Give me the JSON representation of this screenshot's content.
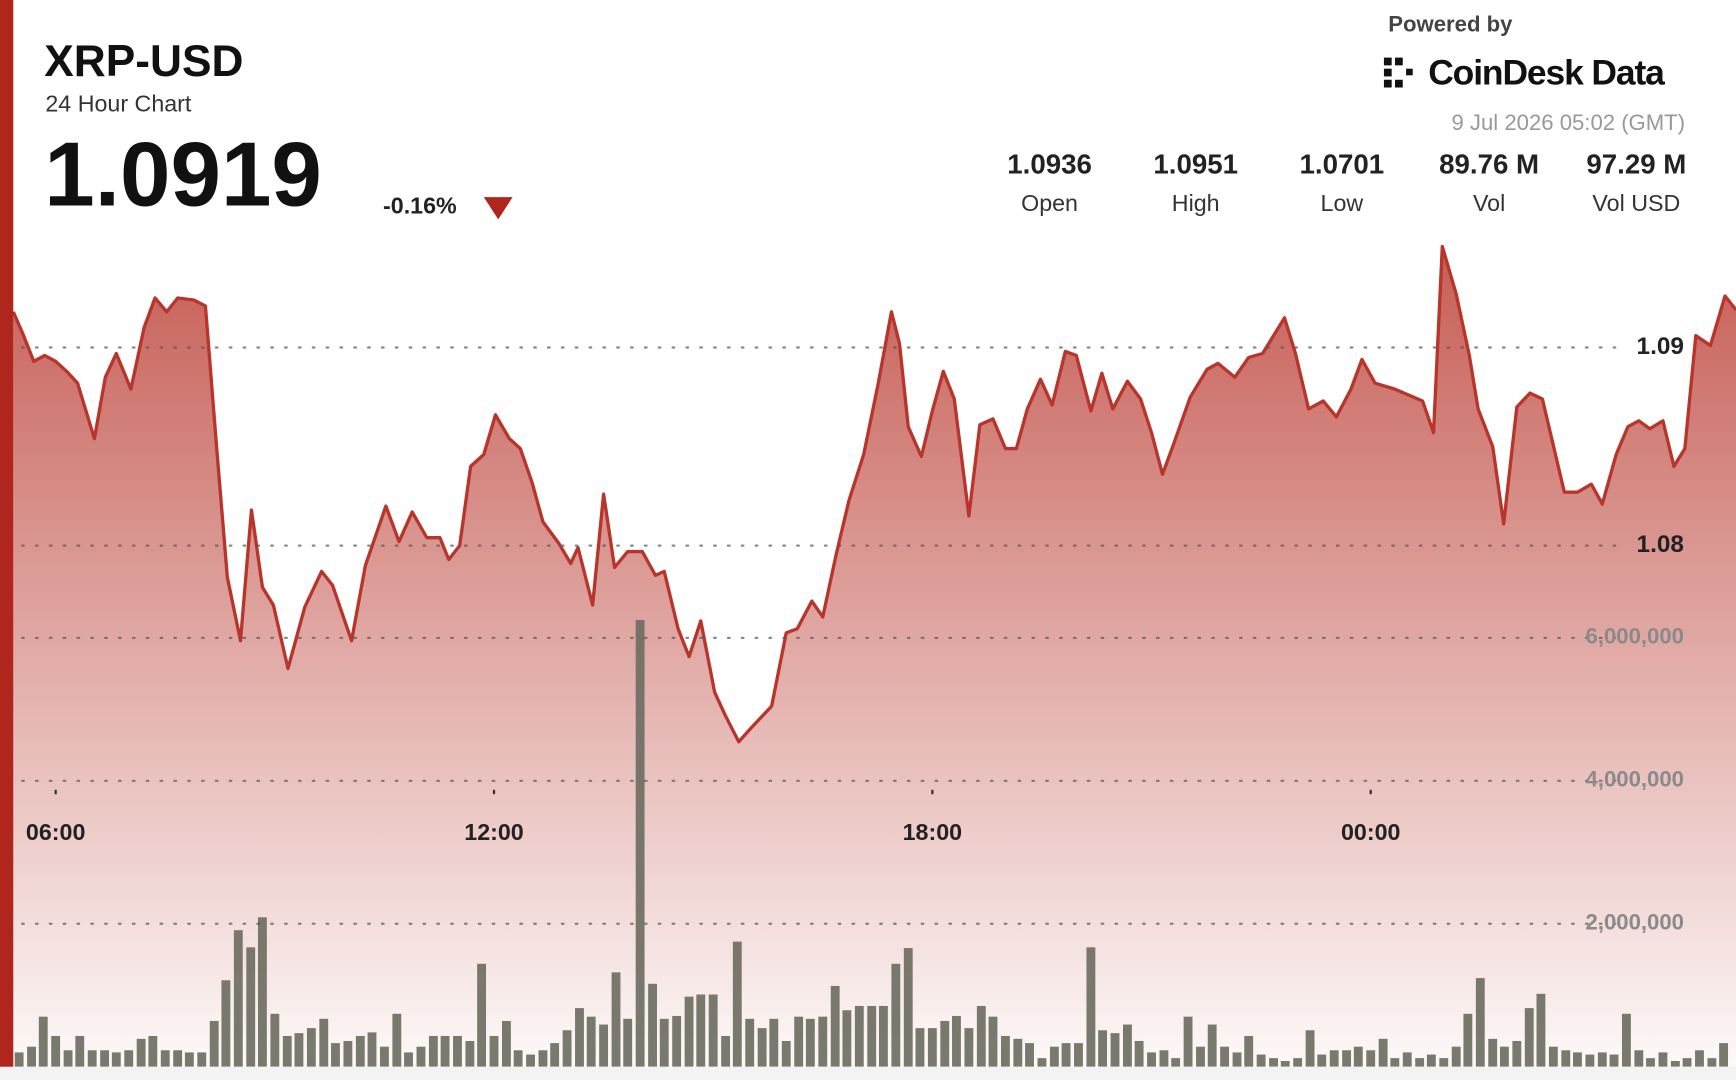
{
  "header": {
    "symbol": "XRP-USD",
    "subtitle": "24 Hour Chart",
    "price": "1.0919",
    "change": "-0.16%",
    "powered_by": "Powered by",
    "brand": "CoinDesk Data",
    "timestamp": "9 Jul 2026 05:02 (GMT)",
    "stats": [
      {
        "value": "1.0936",
        "label": "Open"
      },
      {
        "value": "1.0951",
        "label": "High"
      },
      {
        "value": "1.0701",
        "label": "Low"
      },
      {
        "value": "89.76 M",
        "label": "Vol"
      },
      {
        "value": "97.29 M",
        "label": "Vol USD"
      }
    ]
  },
  "chart_data": [
    {
      "type": "area",
      "color": "#b8352b",
      "xlim": [
        5.42,
        29
      ],
      "xticks": [
        {
          "value": 6,
          "label": "06:00"
        },
        {
          "value": 12,
          "label": "12:00"
        },
        {
          "value": 18,
          "label": "18:00"
        },
        {
          "value": 24,
          "label": "00:00"
        }
      ],
      "ylim": [
        1.0537,
        1.0958
      ],
      "yticks": [
        1.08,
        1.09
      ],
      "grid": true,
      "x": [
        5.42,
        5.55,
        5.7,
        5.85,
        6,
        6.15,
        6.3,
        6.53,
        6.68,
        6.83,
        7.03,
        7.21,
        7.36,
        7.52,
        7.67,
        7.89,
        8.05,
        8.2,
        8.35,
        8.53,
        8.68,
        8.83,
        8.98,
        9.18,
        9.41,
        9.64,
        9.79,
        10.05,
        10.24,
        10.52,
        10.7,
        10.88,
        11.08,
        11.26,
        11.38,
        11.53,
        11.68,
        11.86,
        12.02,
        12.21,
        12.36,
        12.52,
        12.67,
        12.89,
        13.05,
        13.15,
        13.35,
        13.5,
        13.65,
        13.83,
        14.03,
        14.21,
        14.33,
        14.52,
        14.67,
        14.83,
        15.02,
        15.17,
        15.35,
        15.52,
        15.8,
        16,
        16.15,
        16.35,
        16.5,
        16.68,
        16.86,
        17.06,
        17.26,
        17.44,
        17.55,
        17.67,
        17.85,
        18,
        18.15,
        18.3,
        18.5,
        18.65,
        18.83,
        19,
        19.15,
        19.3,
        19.48,
        19.64,
        19.82,
        19.97,
        20.17,
        20.32,
        20.47,
        20.67,
        20.85,
        21,
        21.15,
        21.3,
        21.53,
        21.76,
        21.91,
        22.14,
        22.33,
        22.52,
        22.82,
        22.97,
        23.15,
        23.35,
        23.53,
        23.73,
        23.88,
        24.06,
        24.33,
        24.71,
        24.86,
        24.98,
        25.17,
        25.35,
        25.47,
        25.67,
        25.82,
        26,
        26.18,
        26.35,
        26.65,
        26.83,
        27.02,
        27.17,
        27.36,
        27.52,
        27.67,
        27.82,
        28,
        28.15,
        28.3,
        28.45,
        28.65,
        28.85,
        29
      ],
      "values": [
        1.0918,
        1.0907,
        1.0893,
        1.0896,
        1.0893,
        1.0888,
        1.0882,
        1.0854,
        1.0885,
        1.0897,
        1.0879,
        1.091,
        1.0925,
        1.0918,
        1.0925,
        1.0924,
        1.0921,
        1.0851,
        1.0784,
        1.0752,
        1.0818,
        1.0779,
        1.077,
        1.0738,
        1.0769,
        1.0787,
        1.078,
        1.0752,
        1.079,
        1.082,
        1.0802,
        1.0817,
        1.0804,
        1.0804,
        1.0793,
        1.08,
        1.084,
        1.0846,
        1.0866,
        1.0854,
        1.0849,
        1.0832,
        1.0812,
        1.0801,
        1.0791,
        1.0799,
        1.077,
        1.0826,
        1.0789,
        1.0797,
        1.0797,
        1.0785,
        1.0787,
        1.0758,
        1.0744,
        1.0762,
        1.0726,
        1.0714,
        1.0701,
        1.0708,
        1.0719,
        1.0756,
        1.0758,
        1.0772,
        1.0764,
        1.0795,
        1.0823,
        1.0846,
        1.0882,
        1.0918,
        1.0902,
        1.086,
        1.0845,
        1.0868,
        1.0888,
        1.0874,
        1.0815,
        1.0861,
        1.0864,
        1.0849,
        1.0849,
        1.0869,
        1.0884,
        1.0871,
        1.0898,
        1.0896,
        1.0868,
        1.0887,
        1.0869,
        1.0883,
        1.0874,
        1.0857,
        1.0836,
        1.0851,
        1.0875,
        1.0889,
        1.0892,
        1.0885,
        1.0895,
        1.0897,
        1.0915,
        1.0897,
        1.0869,
        1.0873,
        1.0865,
        1.0879,
        1.0894,
        1.0882,
        1.0879,
        1.0873,
        1.0857,
        1.0951,
        1.0927,
        1.0896,
        1.0869,
        1.085,
        1.0811,
        1.087,
        1.0877,
        1.0874,
        1.0827,
        1.0827,
        1.0831,
        1.0821,
        1.0846,
        1.086,
        1.0863,
        1.0859,
        1.0863,
        1.084,
        1.0849,
        1.0906,
        1.0901,
        1.0926,
        1.0919
      ]
    },
    {
      "type": "bar",
      "color": "#6e6e62",
      "xlim": [
        5.42,
        29
      ],
      "ylim": [
        0,
        11670000
      ],
      "yticks": [
        {
          "value": 2000000,
          "label": "2,000,000"
        },
        {
          "value": 4000000,
          "label": "4,000,000"
        },
        {
          "value": 6000000,
          "label": "6,000,000"
        }
      ],
      "grid": true,
      "x": [
        5.5,
        5.67,
        5.83,
        6,
        6.17,
        6.33,
        6.5,
        6.67,
        6.83,
        7,
        7.17,
        7.33,
        7.5,
        7.67,
        7.83,
        8,
        8.17,
        8.33,
        8.5,
        8.67,
        8.83,
        9,
        9.17,
        9.33,
        9.5,
        9.67,
        9.83,
        10,
        10.17,
        10.33,
        10.5,
        10.67,
        10.83,
        11,
        11.17,
        11.33,
        11.5,
        11.67,
        11.83,
        12,
        12.17,
        12.33,
        12.5,
        12.67,
        12.83,
        13,
        13.17,
        13.33,
        13.5,
        13.67,
        13.83,
        14,
        14.17,
        14.33,
        14.5,
        14.67,
        14.83,
        15,
        15.17,
        15.33,
        15.5,
        15.67,
        15.83,
        16,
        16.17,
        16.33,
        16.5,
        16.67,
        16.83,
        17,
        17.17,
        17.33,
        17.5,
        17.67,
        17.83,
        18,
        18.17,
        18.33,
        18.5,
        18.67,
        18.83,
        19,
        19.17,
        19.33,
        19.5,
        19.67,
        19.83,
        20,
        20.17,
        20.33,
        20.5,
        20.67,
        20.83,
        21,
        21.17,
        21.33,
        21.5,
        21.67,
        21.83,
        22,
        22.17,
        22.33,
        22.5,
        22.67,
        22.83,
        23,
        23.17,
        23.33,
        23.5,
        23.67,
        23.83,
        24,
        24.17,
        24.33,
        24.5,
        24.67,
        24.83,
        25,
        25.17,
        25.33,
        25.5,
        25.67,
        25.83,
        26,
        26.17,
        26.33,
        26.5,
        26.67,
        26.83,
        27,
        27.17,
        27.33,
        27.5,
        27.67,
        27.83,
        28,
        28.17,
        28.33,
        28.5,
        28.67,
        28.83
      ],
      "values": [
        200000,
        280000,
        700000,
        430000,
        230000,
        430000,
        230000,
        230000,
        200000,
        230000,
        390000,
        430000,
        230000,
        230000,
        200000,
        200000,
        640000,
        1210000,
        1910000,
        1670000,
        2090000,
        740000,
        430000,
        470000,
        540000,
        670000,
        330000,
        360000,
        430000,
        480000,
        280000,
        740000,
        200000,
        280000,
        430000,
        430000,
        430000,
        360000,
        1440000,
        430000,
        640000,
        230000,
        170000,
        230000,
        330000,
        510000,
        820000,
        700000,
        590000,
        1320000,
        670000,
        6250000,
        1160000,
        670000,
        710000,
        980000,
        1010000,
        1010000,
        430000,
        1750000,
        670000,
        540000,
        670000,
        360000,
        700000,
        670000,
        700000,
        1130000,
        790000,
        850000,
        850000,
        850000,
        1440000,
        1660000,
        540000,
        540000,
        640000,
        710000,
        540000,
        850000,
        700000,
        430000,
        390000,
        330000,
        120000,
        280000,
        330000,
        330000,
        1670000,
        510000,
        470000,
        590000,
        360000,
        200000,
        230000,
        120000,
        700000,
        280000,
        590000,
        280000,
        200000,
        430000,
        170000,
        120000,
        80000,
        120000,
        510000,
        170000,
        230000,
        230000,
        280000,
        230000,
        390000,
        120000,
        200000,
        120000,
        170000,
        120000,
        280000,
        740000,
        1240000,
        390000,
        280000,
        360000,
        820000,
        1020000,
        280000,
        230000,
        200000,
        170000,
        200000,
        170000,
        740000,
        230000,
        120000,
        200000,
        80000,
        120000,
        230000,
        120000,
        330000
      ]
    }
  ]
}
